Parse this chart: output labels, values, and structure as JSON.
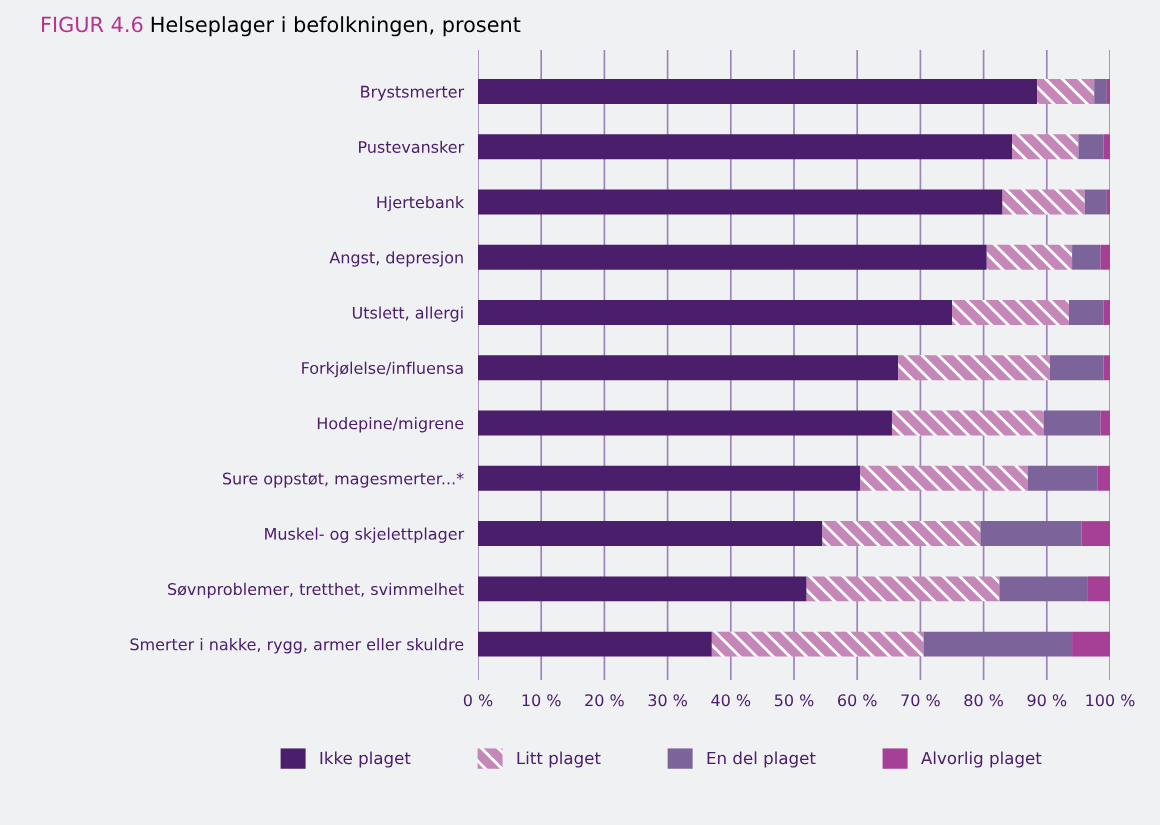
{
  "chart_data": {
    "type": "bar",
    "orientation": "horizontal",
    "stacked": true,
    "title": "FIGUR 4.6",
    "subtitle": "Helseplager i befolkningen, prosent",
    "categories": [
      "Brystsmerter",
      "Pustevansker",
      "Hjertebank",
      "Angst, depresjon",
      "Utslett, allergi",
      "Forkjølelse/influensa",
      "Hodepine/migrene",
      "Sure oppstøt, magesmerter...*",
      "Muskel- og skjelettplager",
      "Søvnproblemer, tretthet, svimmelhet",
      "Smerter i nakke, rygg, armer eller skuldre"
    ],
    "series": [
      {
        "name": "Ikke plaget",
        "color": "#4a1e6b",
        "values": [
          88.5,
          84.5,
          83,
          80.5,
          75,
          66.5,
          65.5,
          60.5,
          54.5,
          52,
          37
        ]
      },
      {
        "name": "Litt plaget",
        "color": "#c586b8",
        "values": [
          9,
          10.5,
          13,
          13.5,
          18.5,
          24,
          24,
          26.5,
          25,
          30.5,
          33.5
        ]
      },
      {
        "name": "En del plaget",
        "color": "#7c6399",
        "values": [
          2,
          4,
          3.5,
          4.5,
          5.5,
          8.5,
          9,
          11,
          16,
          14,
          23.5
        ]
      },
      {
        "name": "Alvorlig plaget",
        "color": "#a63f96",
        "values": [
          0.5,
          1,
          0.5,
          1.5,
          1,
          1,
          1.5,
          2,
          4.5,
          3.5,
          6
        ]
      }
    ],
    "xlim": [
      0,
      100
    ],
    "xticks": [
      {
        "value": 0,
        "label": "0 %"
      },
      {
        "value": 10,
        "label": "10 %"
      },
      {
        "value": 20,
        "label": "20 %"
      },
      {
        "value": 30,
        "label": "30 %"
      },
      {
        "value": 40,
        "label": "40 %"
      },
      {
        "value": 50,
        "label": "50 %"
      },
      {
        "value": 60,
        "label": "60 %"
      },
      {
        "value": 70,
        "label": "70 %"
      },
      {
        "value": 80,
        "label": "80 %"
      },
      {
        "value": 90,
        "label": "90 %"
      },
      {
        "value": 100,
        "label": "100 %"
      }
    ],
    "grid": "x",
    "legend": "bottom"
  }
}
